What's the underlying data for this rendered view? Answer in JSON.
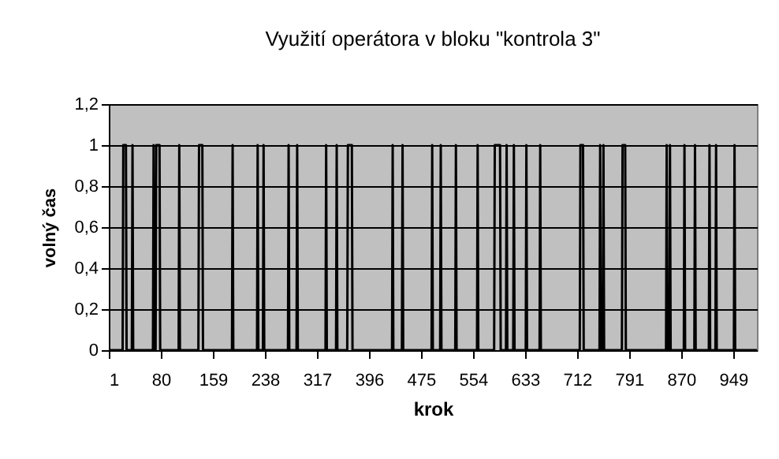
{
  "chart_data": {
    "type": "line",
    "title": "Využití operátora v bloku \"kontrola 3\"",
    "xlabel": "krok",
    "ylabel": "volný čas",
    "x": [
      1,
      22,
      23,
      27,
      28,
      36,
      37,
      38,
      68,
      69,
      70,
      72,
      73,
      78,
      79,
      107,
      108,
      109,
      137,
      138,
      143,
      144,
      188,
      189,
      190,
      226,
      227,
      228,
      235,
      236,
      237,
      273,
      274,
      275,
      286,
      287,
      288,
      330,
      331,
      332,
      346,
      347,
      348,
      363,
      364,
      370,
      371,
      431,
      432,
      433,
      446,
      447,
      448,
      491,
      492,
      493,
      504,
      505,
      506,
      527,
      528,
      529,
      560,
      561,
      562,
      586,
      587,
      595,
      596,
      604,
      605,
      606,
      615,
      616,
      617,
      634,
      635,
      636,
      655,
      656,
      657,
      716,
      717,
      721,
      722,
      746,
      747,
      748,
      751,
      752,
      753,
      780,
      781,
      785,
      786,
      847,
      848,
      849,
      852,
      853,
      854,
      874,
      875,
      876,
      890,
      891,
      892,
      912,
      913,
      914,
      922,
      923,
      924,
      950,
      951,
      952,
      985
    ],
    "series": [
      {
        "color": "#000000",
        "values": [
          0,
          0,
          1,
          1,
          0,
          0,
          1,
          0,
          0,
          1,
          0,
          0,
          1,
          1,
          0,
          0,
          1,
          0,
          0,
          1,
          1,
          0,
          0,
          1,
          0,
          0,
          1,
          0,
          0,
          1,
          0,
          0,
          1,
          0,
          0,
          1,
          0,
          0,
          1,
          0,
          0,
          1,
          0,
          0,
          1,
          1,
          0,
          0,
          1,
          0,
          0,
          1,
          0,
          0,
          1,
          0,
          0,
          1,
          0,
          0,
          1,
          0,
          0,
          1,
          0,
          0,
          1,
          1,
          0,
          0,
          1,
          0,
          0,
          1,
          0,
          0,
          1,
          0,
          0,
          1,
          0,
          0,
          1,
          1,
          0,
          0,
          1,
          0,
          0,
          1,
          0,
          0,
          1,
          1,
          0,
          0,
          1,
          0,
          0,
          1,
          0,
          0,
          1,
          0,
          0,
          1,
          0,
          0,
          1,
          0,
          0,
          1,
          0,
          0,
          1,
          0,
          0
        ]
      }
    ],
    "xlim": [
      1,
      985
    ],
    "xticks": [
      1,
      80,
      159,
      238,
      317,
      396,
      475,
      554,
      633,
      712,
      791,
      870,
      949
    ],
    "ylim": [
      0,
      1.2
    ],
    "yticks": [
      0,
      {
        "value": 0.2,
        "label": "0,2"
      },
      {
        "value": 0.4,
        "label": "0,4"
      },
      {
        "value": 0.6,
        "label": "0,6"
      },
      {
        "value": 0.8,
        "label": "0,8"
      },
      1,
      {
        "value": 1.2,
        "label": "1,2"
      }
    ],
    "grid": "y",
    "marker": "none",
    "line_style": "solid"
  }
}
